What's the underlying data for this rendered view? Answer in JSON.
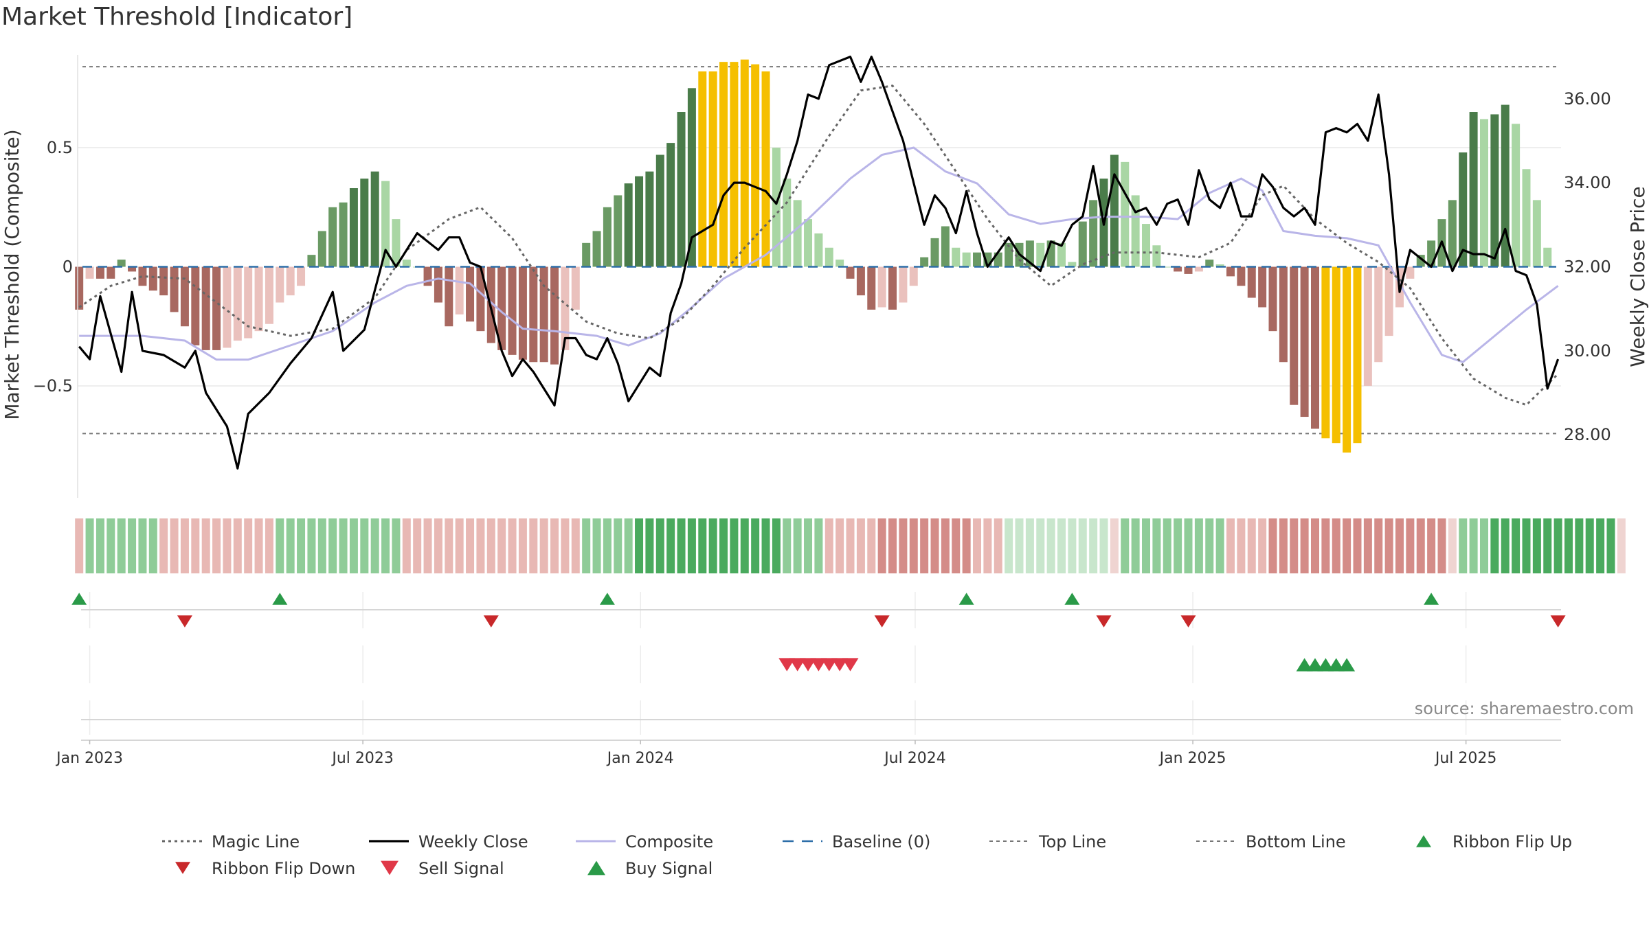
{
  "title": "Market Threshold [Indicator]",
  "source": "source: sharemaestro.com",
  "colors": {
    "green_dark": "#4a7c4a",
    "green_mid": "#6a9a64",
    "green_light": "#a9d6a4",
    "red_dark": "#a86860",
    "red_light": "#eac1bd",
    "gold": "#f5bf00",
    "close": "#000000",
    "composite": "#b9b5e8",
    "magic": "#666666",
    "baseline": "#2d6ea8",
    "threshold": "#777777",
    "flip_up": "#2a9a48",
    "flip_down": "#c8282a",
    "sell": "#e03848",
    "buy": "#2a9a48"
  },
  "chart_data": {
    "type": "bar",
    "title": "Market Threshold [Indicator]",
    "ylabel": "Market Threshold (Composite)",
    "ylabel_right": "Weekly Close Price",
    "ylim": [
      -0.97,
      0.97
    ],
    "ylim_right": [
      26.5,
      37.5
    ],
    "x_start": "2022-12-24",
    "x_end": "2025-09-02",
    "yticks_left": [
      {
        "v": 0.5,
        "label": "0.5"
      },
      {
        "v": 0,
        "label": "0"
      },
      {
        "v": -0.5,
        "label": "−0.5"
      }
    ],
    "yticks_right": [
      {
        "v": 36,
        "label": "36.00"
      },
      {
        "v": 34,
        "label": "34.00"
      },
      {
        "v": 32,
        "label": "32.00"
      },
      {
        "v": 30,
        "label": "30.00"
      },
      {
        "v": 28,
        "label": "28.00"
      }
    ],
    "xticks": [
      {
        "date": "2023-01-01",
        "label": "Jan 2023"
      },
      {
        "date": "2023-07-01",
        "label": "Jul 2023"
      },
      {
        "date": "2024-01-01",
        "label": "Jan 2024"
      },
      {
        "date": "2024-07-01",
        "label": "Jul 2024"
      },
      {
        "date": "2025-01-01",
        "label": "Jan 2025"
      },
      {
        "date": "2025-07-01",
        "label": "Jul 2025"
      }
    ],
    "top_line": 0.84,
    "bottom_line": -0.7,
    "baseline": 0,
    "histogram": {
      "start": "2022-12-25",
      "week_days": 7,
      "values": [
        -0.18,
        -0.05,
        -0.05,
        -0.05,
        0.03,
        -0.02,
        -0.08,
        -0.1,
        -0.12,
        -0.19,
        -0.25,
        -0.33,
        -0.35,
        -0.35,
        -0.34,
        -0.31,
        -0.3,
        -0.27,
        -0.24,
        -0.15,
        -0.12,
        -0.08,
        0.05,
        0.15,
        0.25,
        0.27,
        0.33,
        0.37,
        0.4,
        0.36,
        0.2,
        0.03,
        0,
        -0.08,
        -0.15,
        -0.25,
        -0.2,
        -0.23,
        -0.27,
        -0.32,
        -0.35,
        -0.37,
        -0.39,
        -0.4,
        -0.4,
        -0.41,
        -0.35,
        -0.18,
        0.1,
        0.15,
        0.25,
        0.3,
        0.35,
        0.38,
        0.4,
        0.47,
        0.52,
        0.65,
        0.75,
        0.82,
        0.82,
        0.86,
        0.86,
        0.87,
        0.85,
        0.82,
        0.5,
        0.37,
        0.28,
        0.2,
        0.14,
        0.08,
        0.03,
        -0.05,
        -0.12,
        -0.18,
        -0.17,
        -0.18,
        -0.15,
        -0.08,
        0.04,
        0.12,
        0.17,
        0.08,
        0.06,
        0.06,
        0.06,
        0.06,
        0.1,
        0.1,
        0.11,
        0.1,
        0.11,
        0.1,
        0.02,
        0.19,
        0.28,
        0.37,
        0.47,
        0.44,
        0.3,
        0.18,
        0.09,
        0,
        -0.02,
        -0.03,
        -0.02,
        0.03,
        0.01,
        -0.04,
        -0.08,
        -0.13,
        -0.17,
        -0.27,
        -0.4,
        -0.58,
        -0.63,
        -0.68,
        -0.72,
        -0.74,
        -0.78,
        -0.74,
        -0.5,
        -0.4,
        -0.29,
        -0.17,
        -0.05,
        0.05,
        0.11,
        0.2,
        0.28,
        0.48,
        0.65,
        0.62,
        0.64,
        0.68,
        0.6,
        0.41,
        0.28,
        0.08
      ]
    },
    "ribbon": {
      "start": "2022-12-25",
      "week_days": 7,
      "values": [
        -2,
        2,
        2,
        2,
        2,
        2,
        2,
        2,
        -2,
        -2,
        -2,
        -2,
        -2,
        -2,
        -2,
        -2,
        -2,
        -2,
        -2,
        2,
        2,
        2,
        2,
        2,
        2,
        2,
        2,
        2,
        2,
        2,
        2,
        -2,
        -2,
        -2,
        -2,
        -2,
        -2,
        -2,
        -2,
        -2,
        -2,
        -2,
        -2,
        -2,
        -2,
        -2,
        -2,
        -2,
        2,
        2,
        2,
        2,
        2,
        3,
        3,
        3,
        3,
        3,
        3,
        3,
        3,
        3,
        3,
        3,
        3,
        3,
        3,
        2,
        2,
        2,
        2,
        -2,
        -2,
        -2,
        -2,
        -2,
        -3,
        -3,
        -3,
        -3,
        -3,
        -3,
        -3,
        -3,
        -3,
        -2,
        -2,
        -2,
        1,
        1,
        1,
        1,
        1,
        1,
        1,
        1,
        1,
        1,
        -1,
        2,
        2,
        2,
        2,
        2,
        2,
        2,
        2,
        2,
        2,
        -2,
        -2,
        -2,
        -2,
        -3,
        -3,
        -3,
        -3,
        -3,
        -3,
        -3,
        -3,
        -3,
        -3,
        -3,
        -3,
        -3,
        -3,
        -3,
        -3,
        -3,
        -1,
        2,
        2,
        2,
        3,
        3,
        3,
        3,
        3,
        3,
        3,
        3,
        3,
        3,
        3,
        3,
        -1
      ]
    },
    "weekly_close": {
      "label": "Weekly Close",
      "points": [
        [
          "2022-12-25",
          30.1
        ],
        [
          "2023-01-01",
          29.8
        ],
        [
          "2023-01-08",
          31.3
        ],
        [
          "2023-01-22",
          29.5
        ],
        [
          "2023-01-29",
          31.4
        ],
        [
          "2023-02-05",
          30.0
        ],
        [
          "2023-02-19",
          29.9
        ],
        [
          "2023-03-05",
          29.6
        ],
        [
          "2023-03-12",
          30.0
        ],
        [
          "2023-03-19",
          29.0
        ],
        [
          "2023-04-02",
          28.2
        ],
        [
          "2023-04-09",
          27.2
        ],
        [
          "2023-04-16",
          28.5
        ],
        [
          "2023-04-30",
          29.0
        ],
        [
          "2023-05-14",
          29.7
        ],
        [
          "2023-05-28",
          30.3
        ],
        [
          "2023-06-11",
          31.4
        ],
        [
          "2023-06-18",
          30.0
        ],
        [
          "2023-07-02",
          30.5
        ],
        [
          "2023-07-16",
          32.4
        ],
        [
          "2023-07-23",
          32.0
        ],
        [
          "2023-08-06",
          32.8
        ],
        [
          "2023-08-20",
          32.4
        ],
        [
          "2023-08-27",
          32.7
        ],
        [
          "2023-09-03",
          32.7
        ],
        [
          "2023-09-10",
          32.1
        ],
        [
          "2023-09-17",
          32.0
        ],
        [
          "2023-10-01",
          30.0
        ],
        [
          "2023-10-08",
          29.4
        ],
        [
          "2023-10-15",
          29.8
        ],
        [
          "2023-10-22",
          29.5
        ],
        [
          "2023-11-05",
          28.7
        ],
        [
          "2023-11-12",
          30.3
        ],
        [
          "2023-11-19",
          30.3
        ],
        [
          "2023-11-26",
          29.9
        ],
        [
          "2023-12-03",
          29.8
        ],
        [
          "2023-12-10",
          30.3
        ],
        [
          "2023-12-17",
          29.7
        ],
        [
          "2023-12-24",
          28.8
        ],
        [
          "2024-01-07",
          29.6
        ],
        [
          "2024-01-14",
          29.4
        ],
        [
          "2024-01-21",
          30.9
        ],
        [
          "2024-01-28",
          31.6
        ],
        [
          "2024-02-04",
          32.7
        ],
        [
          "2024-02-18",
          33.0
        ],
        [
          "2024-02-25",
          33.7
        ],
        [
          "2024-03-03",
          34.0
        ],
        [
          "2024-03-10",
          34.0
        ],
        [
          "2024-03-17",
          33.9
        ],
        [
          "2024-03-24",
          33.8
        ],
        [
          "2024-03-31",
          33.5
        ],
        [
          "2024-04-07",
          34.2
        ],
        [
          "2024-04-14",
          35.0
        ],
        [
          "2024-04-21",
          36.1
        ],
        [
          "2024-04-28",
          36.0
        ],
        [
          "2024-05-05",
          36.8
        ],
        [
          "2024-05-19",
          37.0
        ],
        [
          "2024-05-26",
          36.4
        ],
        [
          "2024-06-02",
          37.0
        ],
        [
          "2024-06-09",
          36.4
        ],
        [
          "2024-06-23",
          35.0
        ],
        [
          "2024-07-07",
          33.0
        ],
        [
          "2024-07-14",
          33.7
        ],
        [
          "2024-07-21",
          33.4
        ],
        [
          "2024-07-28",
          32.8
        ],
        [
          "2024-08-04",
          33.8
        ],
        [
          "2024-08-11",
          32.8
        ],
        [
          "2024-08-18",
          32.0
        ],
        [
          "2024-09-01",
          32.7
        ],
        [
          "2024-09-08",
          32.3
        ],
        [
          "2024-09-22",
          31.9
        ],
        [
          "2024-09-29",
          32.6
        ],
        [
          "2024-10-06",
          32.5
        ],
        [
          "2024-10-13",
          33.0
        ],
        [
          "2024-10-20",
          33.2
        ],
        [
          "2024-10-27",
          34.4
        ],
        [
          "2024-11-03",
          33.0
        ],
        [
          "2024-11-10",
          34.2
        ],
        [
          "2024-11-24",
          33.3
        ],
        [
          "2024-12-01",
          33.4
        ],
        [
          "2024-12-08",
          33.0
        ],
        [
          "2024-12-15",
          33.5
        ],
        [
          "2024-12-22",
          33.6
        ],
        [
          "2024-12-29",
          33.0
        ],
        [
          "2025-01-05",
          34.3
        ],
        [
          "2025-01-12",
          33.6
        ],
        [
          "2025-01-19",
          33.4
        ],
        [
          "2025-01-26",
          34.0
        ],
        [
          "2025-02-02",
          33.2
        ],
        [
          "2025-02-09",
          33.2
        ],
        [
          "2025-02-16",
          34.2
        ],
        [
          "2025-02-23",
          33.9
        ],
        [
          "2025-03-02",
          33.4
        ],
        [
          "2025-03-09",
          33.2
        ],
        [
          "2025-03-16",
          33.4
        ],
        [
          "2025-03-23",
          33.0
        ],
        [
          "2025-03-30",
          35.2
        ],
        [
          "2025-04-06",
          35.3
        ],
        [
          "2025-04-13",
          35.2
        ],
        [
          "2025-04-20",
          35.4
        ],
        [
          "2025-04-27",
          35.0
        ],
        [
          "2025-05-04",
          36.1
        ],
        [
          "2025-05-11",
          34.2
        ],
        [
          "2025-05-18",
          31.4
        ],
        [
          "2025-05-25",
          32.4
        ],
        [
          "2025-06-01",
          32.2
        ],
        [
          "2025-06-08",
          32.0
        ],
        [
          "2025-06-15",
          32.6
        ],
        [
          "2025-06-22",
          31.9
        ],
        [
          "2025-06-29",
          32.4
        ],
        [
          "2025-07-06",
          32.3
        ],
        [
          "2025-07-13",
          32.3
        ],
        [
          "2025-07-20",
          32.2
        ],
        [
          "2025-07-27",
          32.9
        ],
        [
          "2025-08-03",
          31.9
        ],
        [
          "2025-08-10",
          31.8
        ],
        [
          "2025-08-17",
          31.1
        ],
        [
          "2025-08-24",
          29.1
        ],
        [
          "2025-08-31",
          29.8
        ]
      ]
    },
    "composite": {
      "label": "Composite",
      "points": [
        [
          "2022-12-25",
          -0.29
        ],
        [
          "2023-02-05",
          -0.29
        ],
        [
          "2023-03-05",
          -0.31
        ],
        [
          "2023-03-26",
          -0.39
        ],
        [
          "2023-04-16",
          -0.39
        ],
        [
          "2023-05-14",
          -0.33
        ],
        [
          "2023-06-11",
          -0.27
        ],
        [
          "2023-07-09",
          -0.15
        ],
        [
          "2023-07-30",
          -0.08
        ],
        [
          "2023-08-20",
          -0.05
        ],
        [
          "2023-09-10",
          -0.07
        ],
        [
          "2023-10-01",
          -0.19
        ],
        [
          "2023-10-15",
          -0.26
        ],
        [
          "2023-11-05",
          -0.27
        ],
        [
          "2023-12-03",
          -0.29
        ],
        [
          "2023-12-24",
          -0.33
        ],
        [
          "2024-01-14",
          -0.28
        ],
        [
          "2024-02-04",
          -0.17
        ],
        [
          "2024-02-25",
          -0.05
        ],
        [
          "2024-03-24",
          0.05
        ],
        [
          "2024-04-21",
          0.2
        ],
        [
          "2024-05-19",
          0.37
        ],
        [
          "2024-06-09",
          0.47
        ],
        [
          "2024-06-30",
          0.5
        ],
        [
          "2024-07-21",
          0.4
        ],
        [
          "2024-08-11",
          0.35
        ],
        [
          "2024-09-01",
          0.22
        ],
        [
          "2024-09-22",
          0.18
        ],
        [
          "2024-10-13",
          0.2
        ],
        [
          "2024-11-03",
          0.21
        ],
        [
          "2024-12-01",
          0.21
        ],
        [
          "2024-12-22",
          0.2
        ],
        [
          "2025-01-12",
          0.31
        ],
        [
          "2025-02-02",
          0.37
        ],
        [
          "2025-02-16",
          0.32
        ],
        [
          "2025-03-02",
          0.15
        ],
        [
          "2025-03-23",
          0.13
        ],
        [
          "2025-04-13",
          0.12
        ],
        [
          "2025-05-04",
          0.09
        ],
        [
          "2025-05-25",
          -0.15
        ],
        [
          "2025-06-15",
          -0.37
        ],
        [
          "2025-06-29",
          -0.4
        ],
        [
          "2025-07-20",
          -0.29
        ],
        [
          "2025-08-10",
          -0.18
        ],
        [
          "2025-08-31",
          -0.08
        ]
      ]
    },
    "magic_line": {
      "label": "Magic Line",
      "points": [
        [
          "2022-12-25",
          -0.17
        ],
        [
          "2023-01-15",
          -0.08
        ],
        [
          "2023-02-05",
          -0.04
        ],
        [
          "2023-03-05",
          -0.05
        ],
        [
          "2023-03-26",
          -0.15
        ],
        [
          "2023-04-16",
          -0.25
        ],
        [
          "2023-05-14",
          -0.29
        ],
        [
          "2023-06-11",
          -0.26
        ],
        [
          "2023-07-09",
          -0.13
        ],
        [
          "2023-07-30",
          0.07
        ],
        [
          "2023-08-27",
          0.2
        ],
        [
          "2023-09-17",
          0.25
        ],
        [
          "2023-10-08",
          0.12
        ],
        [
          "2023-10-29",
          -0.08
        ],
        [
          "2023-11-26",
          -0.23
        ],
        [
          "2023-12-17",
          -0.28
        ],
        [
          "2024-01-07",
          -0.3
        ],
        [
          "2024-01-28",
          -0.22
        ],
        [
          "2024-02-18",
          -0.08
        ],
        [
          "2024-03-10",
          0.08
        ],
        [
          "2024-04-07",
          0.27
        ],
        [
          "2024-05-05",
          0.55
        ],
        [
          "2024-05-26",
          0.74
        ],
        [
          "2024-06-16",
          0.76
        ],
        [
          "2024-07-07",
          0.6
        ],
        [
          "2024-07-28",
          0.4
        ],
        [
          "2024-08-18",
          0.2
        ],
        [
          "2024-09-08",
          0.03
        ],
        [
          "2024-09-29",
          -0.08
        ],
        [
          "2024-10-20",
          0.01
        ],
        [
          "2024-11-10",
          0.06
        ],
        [
          "2024-12-08",
          0.06
        ],
        [
          "2025-01-05",
          0.04
        ],
        [
          "2025-01-26",
          0.1
        ],
        [
          "2025-02-16",
          0.3
        ],
        [
          "2025-03-02",
          0.34
        ],
        [
          "2025-03-23",
          0.2
        ],
        [
          "2025-04-13",
          0.1
        ],
        [
          "2025-05-04",
          0.02
        ],
        [
          "2025-05-25",
          -0.09
        ],
        [
          "2025-06-15",
          -0.3
        ],
        [
          "2025-07-06",
          -0.47
        ],
        [
          "2025-07-27",
          -0.55
        ],
        [
          "2025-08-10",
          -0.58
        ],
        [
          "2025-08-31",
          -0.45
        ]
      ]
    },
    "ribbon_flip_up": [
      "2022-12-25",
      "2023-05-07",
      "2023-12-10",
      "2024-08-04",
      "2024-10-13",
      "2025-06-08"
    ],
    "ribbon_flip_down": [
      "2023-03-05",
      "2023-09-24",
      "2024-06-09",
      "2024-11-03",
      "2024-12-29",
      "2025-08-31"
    ],
    "sell_signal": [
      "2024-04-07",
      "2024-04-14",
      "2024-04-21",
      "2024-04-28",
      "2024-05-05",
      "2024-05-12",
      "2024-05-19"
    ],
    "buy_signal": [
      "2025-03-16",
      "2025-03-23",
      "2025-03-30",
      "2025-04-06",
      "2025-04-13"
    ],
    "legend": [
      {
        "key": "magic",
        "label": "Magic Line"
      },
      {
        "key": "close",
        "label": "Weekly Close"
      },
      {
        "key": "composite",
        "label": "Composite"
      },
      {
        "key": "baseline",
        "label": "Baseline (0)"
      },
      {
        "key": "top",
        "label": "Top Line"
      },
      {
        "key": "bottom",
        "label": "Bottom Line"
      },
      {
        "key": "flip_up",
        "label": "Ribbon Flip Up"
      },
      {
        "key": "flip_down",
        "label": "Ribbon Flip Down"
      },
      {
        "key": "sell",
        "label": "Sell Signal"
      },
      {
        "key": "buy",
        "label": "Buy Signal"
      }
    ]
  }
}
